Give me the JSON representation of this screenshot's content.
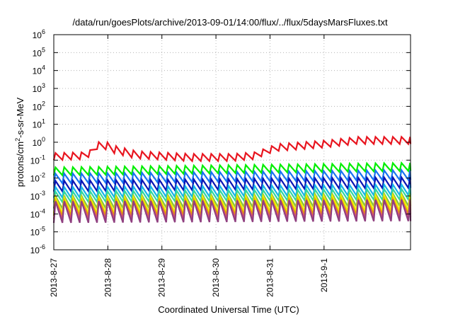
{
  "chart_data": {
    "type": "line",
    "title": "/data/run/goesPlots/archive/2013-09-01/14:00/flux/../flux/5daysMarsFluxes.txt",
    "xlabel": "Coordinated Universal Time (UTC)",
    "ylabel": {
      "prefix": "protons/cm",
      "sup": "2",
      "suffix": "-s-sr-MeV"
    },
    "y_scale": "log",
    "ylim_exponents": [
      -6,
      6
    ],
    "yticks": [
      {
        "base": "10",
        "exp": "6"
      },
      {
        "base": "10",
        "exp": "5"
      },
      {
        "base": "10",
        "exp": "4"
      },
      {
        "base": "10",
        "exp": "3"
      },
      {
        "base": "10",
        "exp": "2"
      },
      {
        "base": "10",
        "exp": "1"
      },
      {
        "base": "10",
        "exp": "0"
      },
      {
        "base": "10",
        "exp": "-1"
      },
      {
        "base": "10",
        "exp": "-2"
      },
      {
        "base": "10",
        "exp": "-3"
      },
      {
        "base": "10",
        "exp": "-4"
      },
      {
        "base": "10",
        "exp": "-5"
      },
      {
        "base": "10",
        "exp": "-6"
      }
    ],
    "xlim_days": [
      0,
      6.6
    ],
    "xticks": [
      {
        "label": "2013-8-27",
        "day": 0
      },
      {
        "label": "2013-8-28",
        "day": 1
      },
      {
        "label": "2013-8-29",
        "day": 2
      },
      {
        "label": "2013-8-30",
        "day": 3
      },
      {
        "label": "2013-8-31",
        "day": 4
      },
      {
        "label": "2013-9-1",
        "day": 5
      }
    ],
    "grid": true,
    "series": [
      {
        "color": "#e8141e",
        "period_days": 0.16,
        "amp_decades": 0.4,
        "base_log": [
          [
            0,
            -1.0
          ],
          [
            0.6,
            -0.95
          ],
          [
            0.85,
            -0.25
          ],
          [
            1.1,
            -0.6
          ],
          [
            1.5,
            -0.9
          ],
          [
            2.5,
            -1.05
          ],
          [
            3.3,
            -1.05
          ],
          [
            3.7,
            -0.95
          ],
          [
            4.1,
            -0.5
          ],
          [
            5.0,
            -0.3
          ],
          [
            5.6,
            -0.1
          ],
          [
            6.6,
            -0.1
          ]
        ]
      },
      {
        "color": "#00ee00",
        "period_days": 0.16,
        "amp_decades": 0.45,
        "base_log": [
          [
            0,
            -1.85
          ],
          [
            6.6,
            -1.6
          ]
        ]
      },
      {
        "color": "#1874f0",
        "period_days": 0.16,
        "amp_decades": 0.55,
        "base_log": [
          [
            0,
            -2.3
          ],
          [
            6.6,
            -2.1
          ]
        ]
      },
      {
        "color": "#0a14b4",
        "period_days": 0.16,
        "amp_decades": 0.6,
        "base_log": [
          [
            0,
            -2.75
          ],
          [
            6.6,
            -2.55
          ]
        ]
      },
      {
        "color": "#18b4e8",
        "period_days": 0.16,
        "amp_decades": 0.6,
        "base_log": [
          [
            0,
            -3.1
          ],
          [
            6.6,
            -2.95
          ]
        ]
      },
      {
        "color": "#30d8a0",
        "period_days": 0.16,
        "amp_decades": 0.6,
        "base_log": [
          [
            0,
            -3.35
          ],
          [
            6.6,
            -3.2
          ]
        ]
      },
      {
        "color": "#88c040",
        "period_days": 0.16,
        "amp_decades": 0.7,
        "base_log": [
          [
            0,
            -3.7
          ],
          [
            6.6,
            -3.55
          ]
        ]
      },
      {
        "color": "#f0f000",
        "period_days": 0.16,
        "amp_decades": 0.85,
        "base_log": [
          [
            0,
            -3.95
          ],
          [
            6.6,
            -3.8
          ]
        ]
      },
      {
        "color": "#e0a000",
        "period_days": 0.16,
        "amp_decades": 0.85,
        "base_log": [
          [
            0,
            -4.1
          ],
          [
            6.6,
            -4.0
          ]
        ]
      },
      {
        "color": "#e05070",
        "period_days": 0.16,
        "amp_decades": 1.0,
        "base_log": [
          [
            0,
            -4.3
          ],
          [
            6.6,
            -4.2
          ]
        ]
      },
      {
        "color": "#904080",
        "period_days": 0.16,
        "amp_decades": 1.2,
        "base_log": [
          [
            0,
            -4.5
          ],
          [
            6.6,
            -4.4
          ]
        ]
      }
    ]
  }
}
